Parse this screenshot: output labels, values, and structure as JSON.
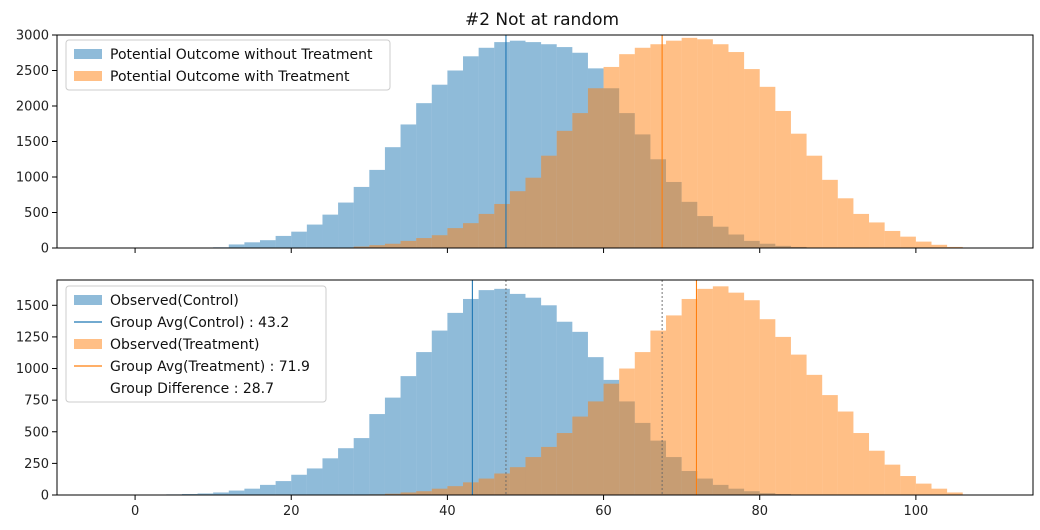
{
  "title": "#2 Not at random",
  "colors": {
    "blue": "#1f77b4",
    "orange": "#ff7f0e",
    "gray": "#666666"
  },
  "chart_data": [
    {
      "type": "histogram",
      "xlim": [
        -10,
        115
      ],
      "ylim": [
        0,
        3000
      ],
      "xticks": [
        0,
        20,
        40,
        60,
        80,
        100
      ],
      "yticks": [
        0,
        500,
        1000,
        1500,
        2000,
        2500,
        3000
      ],
      "legend_position": "top-left",
      "bin_width": 2,
      "series": [
        {
          "name": "Potential Outcome without Treatment",
          "color": "#1f77b4",
          "bin_starts": [
            8,
            10,
            12,
            14,
            16,
            18,
            20,
            22,
            24,
            26,
            28,
            30,
            32,
            34,
            36,
            38,
            40,
            42,
            44,
            46,
            48,
            50,
            52,
            54,
            56,
            58,
            60,
            62,
            64,
            66,
            68,
            70,
            72,
            74,
            76,
            78,
            80,
            82,
            84,
            86
          ],
          "counts": [
            5,
            10,
            50,
            80,
            110,
            170,
            230,
            330,
            470,
            640,
            860,
            1100,
            1420,
            1740,
            2040,
            2300,
            2500,
            2700,
            2820,
            2900,
            2920,
            2900,
            2870,
            2830,
            2750,
            2530,
            2250,
            1900,
            1600,
            1250,
            930,
            650,
            450,
            300,
            190,
            100,
            60,
            30,
            15,
            5
          ]
        },
        {
          "name": "Potential Outcome with Treatment",
          "color": "#ff7f0e",
          "bin_starts": [
            26,
            28,
            30,
            32,
            34,
            36,
            38,
            40,
            42,
            44,
            46,
            48,
            50,
            52,
            54,
            56,
            58,
            60,
            62,
            64,
            66,
            68,
            70,
            72,
            74,
            76,
            78,
            80,
            82,
            84,
            86,
            88,
            90,
            92,
            94,
            96,
            98,
            100,
            102,
            104
          ],
          "counts": [
            5,
            20,
            40,
            60,
            100,
            140,
            180,
            280,
            350,
            480,
            620,
            800,
            990,
            1300,
            1650,
            1900,
            2250,
            2550,
            2730,
            2820,
            2870,
            2920,
            2960,
            2940,
            2870,
            2760,
            2520,
            2270,
            1930,
            1610,
            1300,
            960,
            700,
            480,
            360,
            240,
            160,
            90,
            45,
            15
          ]
        }
      ],
      "vlines": [
        {
          "x": 47.5,
          "color": "#1f77b4",
          "style": "solid"
        },
        {
          "x": 67.5,
          "color": "#ff7f0e",
          "style": "solid"
        }
      ]
    },
    {
      "type": "histogram",
      "xlim": [
        -10,
        115
      ],
      "ylim": [
        0,
        1700
      ],
      "xticks": [
        0,
        20,
        40,
        60,
        80,
        100
      ],
      "yticks": [
        0,
        250,
        500,
        750,
        1000,
        1250,
        1500
      ],
      "legend_position": "top-left",
      "bin_width": 2,
      "series": [
        {
          "name": "Observed(Control)",
          "color": "#1f77b4",
          "bin_starts": [
            4,
            6,
            8,
            10,
            12,
            14,
            16,
            18,
            20,
            22,
            24,
            26,
            28,
            30,
            32,
            34,
            36,
            38,
            40,
            42,
            44,
            46,
            48,
            50,
            52,
            54,
            56,
            58,
            60,
            62,
            64,
            66,
            68,
            70,
            72,
            74,
            76,
            78,
            80,
            82,
            84
          ],
          "counts": [
            5,
            8,
            12,
            20,
            35,
            50,
            80,
            110,
            160,
            210,
            290,
            370,
            450,
            640,
            770,
            940,
            1130,
            1300,
            1440,
            1550,
            1620,
            1630,
            1590,
            1560,
            1500,
            1370,
            1290,
            1090,
            910,
            740,
            570,
            430,
            300,
            190,
            130,
            80,
            50,
            30,
            15,
            8,
            3
          ]
        },
        {
          "name": "Observed(Treatment)",
          "color": "#ff7f0e",
          "bin_starts": [
            30,
            32,
            34,
            36,
            38,
            40,
            42,
            44,
            46,
            48,
            50,
            52,
            54,
            56,
            58,
            60,
            62,
            64,
            66,
            68,
            70,
            72,
            74,
            76,
            78,
            80,
            82,
            84,
            86,
            88,
            90,
            92,
            94,
            96,
            98,
            100,
            102,
            104
          ],
          "counts": [
            5,
            10,
            20,
            30,
            50,
            70,
            100,
            130,
            170,
            220,
            300,
            380,
            490,
            620,
            740,
            880,
            1000,
            1130,
            1300,
            1420,
            1550,
            1630,
            1650,
            1600,
            1540,
            1390,
            1250,
            1110,
            950,
            790,
            660,
            490,
            350,
            240,
            150,
            90,
            50,
            20
          ]
        }
      ],
      "vlines": [
        {
          "x": 43.2,
          "color": "#1f77b4",
          "style": "solid"
        },
        {
          "x": 71.9,
          "color": "#ff7f0e",
          "style": "solid"
        },
        {
          "x": 47.5,
          "color": "#666666",
          "style": "dotted"
        },
        {
          "x": 67.5,
          "color": "#666666",
          "style": "dotted"
        }
      ],
      "legend": [
        {
          "label": "Observed(Control)",
          "kind": "patch",
          "color": "#1f77b4"
        },
        {
          "label": "Group Avg(Control) : 43.2",
          "kind": "line",
          "color": "#1f77b4"
        },
        {
          "label": "Observed(Treatment)",
          "kind": "patch",
          "color": "#ff7f0e"
        },
        {
          "label": "Group Avg(Treatment) : 71.9",
          "kind": "line",
          "color": "#ff7f0e"
        },
        {
          "label": "Group Difference : 28.7",
          "kind": "none",
          "color": ""
        }
      ]
    }
  ]
}
